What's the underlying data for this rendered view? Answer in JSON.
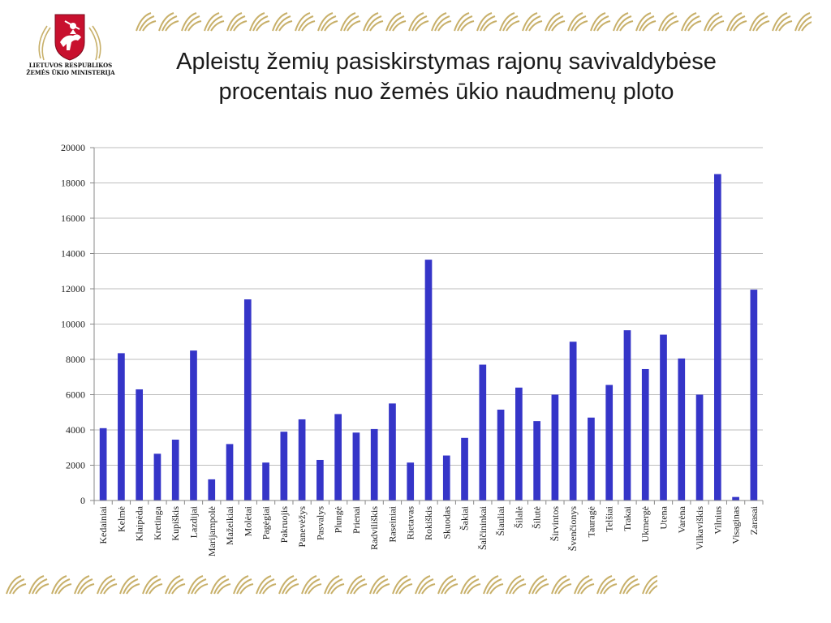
{
  "slide": {
    "logo_lines": [
      "LIETUVOS RESPUBLIKOS",
      "ŽEMĖS ŪKIO MINISTERIJA"
    ],
    "title_lines": [
      "Apleistų žemių pasiskirstymas rajonų savivaldybėse",
      "procentais nuo žemės ūkio naudmenų ploto"
    ],
    "ornament_color": "#c8b06a",
    "logo_shield_color": "#c8102e"
  },
  "chart_data": {
    "type": "bar",
    "title": "",
    "xlabel": "",
    "ylabel": "",
    "ylim": [
      0,
      20000
    ],
    "yticks": [
      0,
      2000,
      4000,
      6000,
      8000,
      10000,
      12000,
      14000,
      16000,
      18000,
      20000
    ],
    "grid": true,
    "bar_color": "#3535c8",
    "categories": [
      "Kedainiai",
      "Kelmė",
      "Klaipėda",
      "Kretinga",
      "Kupiškis",
      "Lazdijai",
      "Marijampolė",
      "Mažeikiai",
      "Molėtai",
      "Pagėgiai",
      "Pakruojis",
      "Panevėžys",
      "Pasvalys",
      "Plungė",
      "Prienai",
      "Radviliškis",
      "Raseiniai",
      "Rietavas",
      "Rokiškis",
      "Skuodas",
      "Šakiai",
      "Šalčininkai",
      "Šiauliai",
      "Šilalė",
      "Šilutė",
      "Širvintos",
      "Švenčionys",
      "Tauragė",
      "Telšiai",
      "Trakai",
      "Ukmergė",
      "Utena",
      "Varėna",
      "Vilkaviškis",
      "Vilnius",
      "Visaginas",
      "Zarasai"
    ],
    "values": [
      4100,
      8350,
      6300,
      2650,
      3450,
      8500,
      1200,
      3200,
      11400,
      2150,
      3900,
      4600,
      2300,
      4900,
      3850,
      4050,
      5500,
      2150,
      13650,
      2550,
      3550,
      7700,
      5150,
      6400,
      4500,
      6000,
      9000,
      4700,
      6550,
      9650,
      7450,
      9400,
      8050,
      6000,
      18500,
      200,
      11950
    ]
  }
}
